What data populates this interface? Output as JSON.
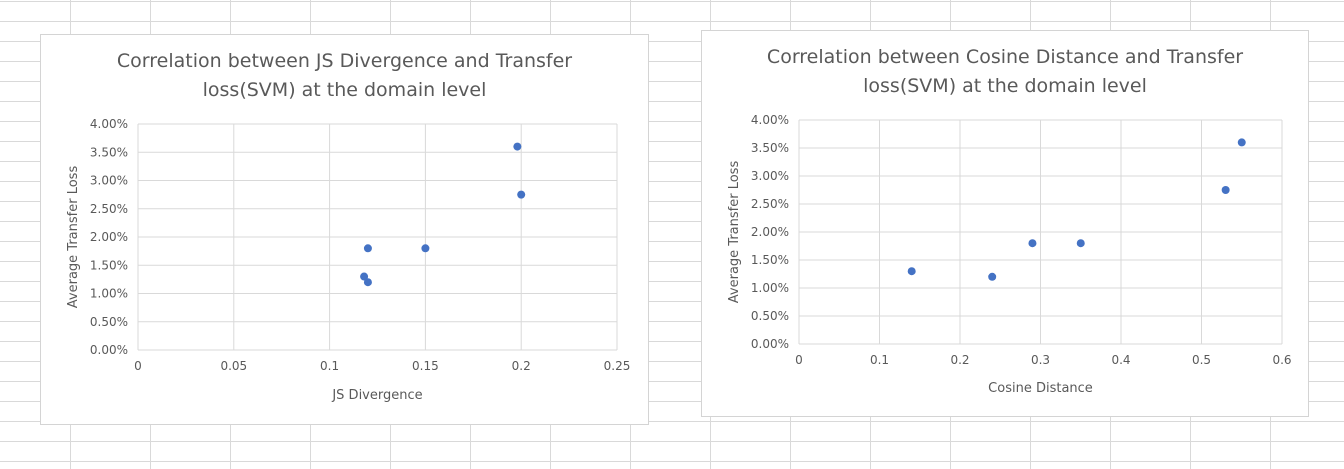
{
  "chart_data": [
    {
      "type": "scatter",
      "title": "Correlation between JS Divergence and Transfer loss(SVM) at the domain level",
      "xlabel": "JS Divergence",
      "ylabel": "Average Transfer Loss",
      "xlim": [
        0,
        0.25
      ],
      "ylim": [
        0,
        0.04
      ],
      "x_ticks": [
        "0",
        "0.05",
        "0.1",
        "0.15",
        "0.2",
        "0.25"
      ],
      "y_ticks": [
        "0.00%",
        "0.50%",
        "1.00%",
        "1.50%",
        "2.00%",
        "2.50%",
        "3.00%",
        "3.50%",
        "4.00%"
      ],
      "grid": true,
      "legend": "none",
      "marker_color": "#4472c4",
      "points": [
        {
          "x": 0.118,
          "y": 0.013
        },
        {
          "x": 0.12,
          "y": 0.012
        },
        {
          "x": 0.12,
          "y": 0.018
        },
        {
          "x": 0.15,
          "y": 0.018
        },
        {
          "x": 0.198,
          "y": 0.036
        },
        {
          "x": 0.2,
          "y": 0.0275
        }
      ]
    },
    {
      "type": "scatter",
      "title": "Correlation between Cosine Distance and Transfer loss(SVM) at the domain level",
      "xlabel": "Cosine Distance",
      "ylabel": "Average Transfer Loss",
      "xlim": [
        0,
        0.6
      ],
      "ylim": [
        0,
        0.04
      ],
      "x_ticks": [
        "0",
        "0.1",
        "0.2",
        "0.3",
        "0.4",
        "0.5",
        "0.6"
      ],
      "y_ticks": [
        "0.00%",
        "0.50%",
        "1.00%",
        "1.50%",
        "2.00%",
        "2.50%",
        "3.00%",
        "3.50%",
        "4.00%"
      ],
      "grid": true,
      "legend": "none",
      "marker_color": "#4472c4",
      "points": [
        {
          "x": 0.14,
          "y": 0.013
        },
        {
          "x": 0.24,
          "y": 0.012
        },
        {
          "x": 0.29,
          "y": 0.018
        },
        {
          "x": 0.35,
          "y": 0.018
        },
        {
          "x": 0.53,
          "y": 0.0275
        },
        {
          "x": 0.55,
          "y": 0.036
        }
      ]
    }
  ]
}
